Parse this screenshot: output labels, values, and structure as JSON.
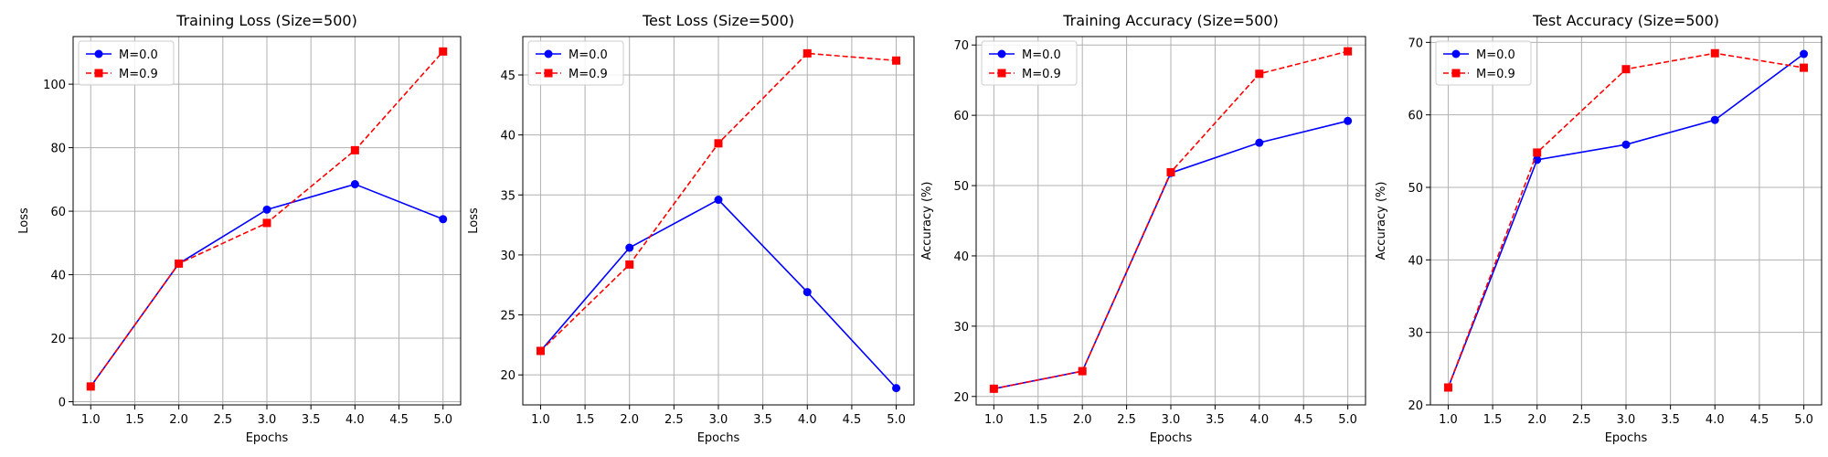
{
  "chart_data": [
    {
      "type": "line",
      "title": "Training Loss (Size=500)",
      "xlabel": "Epochs",
      "ylabel": "Loss",
      "x": [
        1,
        2,
        3,
        4,
        5
      ],
      "xlim": [
        0.8,
        5.2
      ],
      "ylim": [
        -1,
        115
      ],
      "xticks": [
        1.0,
        1.5,
        2.0,
        2.5,
        3.0,
        3.5,
        4.0,
        4.5,
        5.0
      ],
      "yticks": [
        0,
        20,
        40,
        60,
        80,
        100
      ],
      "xtick_labels": [
        "1.0",
        "1.5",
        "2.0",
        "2.5",
        "3.0",
        "3.5",
        "4.0",
        "4.5",
        "5.0"
      ],
      "ytick_labels": [
        "0",
        "20",
        "40",
        "60",
        "80",
        "100"
      ],
      "grid": true,
      "legend_position": "top-left",
      "series": [
        {
          "name": "M=0.0",
          "values": [
            4.8,
            43.5,
            60.5,
            68.5,
            57.5
          ],
          "color": "#0000ff",
          "linestyle": "solid",
          "marker": "circle"
        },
        {
          "name": "M=0.9",
          "values": [
            4.8,
            43.5,
            56.3,
            79.2,
            110.3
          ],
          "color": "#ff0000",
          "linestyle": "dashed",
          "marker": "square"
        }
      ]
    },
    {
      "type": "line",
      "title": "Test Loss (Size=500)",
      "xlabel": "Epochs",
      "ylabel": "Loss",
      "x": [
        1,
        2,
        3,
        4,
        5
      ],
      "xlim": [
        0.8,
        5.2
      ],
      "ylim": [
        17.5,
        48.2
      ],
      "xticks": [
        1.0,
        1.5,
        2.0,
        2.5,
        3.0,
        3.5,
        4.0,
        4.5,
        5.0
      ],
      "yticks": [
        20,
        25,
        30,
        35,
        40,
        45
      ],
      "xtick_labels": [
        "1.0",
        "1.5",
        "2.0",
        "2.5",
        "3.0",
        "3.5",
        "4.0",
        "4.5",
        "5.0"
      ],
      "ytick_labels": [
        "20",
        "25",
        "30",
        "35",
        "40",
        "45"
      ],
      "grid": true,
      "legend_position": "top-left",
      "series": [
        {
          "name": "M=0.0",
          "values": [
            22.0,
            30.6,
            34.6,
            26.9,
            18.9
          ],
          "color": "#0000ff",
          "linestyle": "solid",
          "marker": "circle"
        },
        {
          "name": "M=0.9",
          "values": [
            22.0,
            29.2,
            39.3,
            46.8,
            46.2
          ],
          "color": "#ff0000",
          "linestyle": "dashed",
          "marker": "square"
        }
      ]
    },
    {
      "type": "line",
      "title": "Training Accuracy (Size=500)",
      "xlabel": "Epochs",
      "ylabel": "Accuracy (%)",
      "x": [
        1,
        2,
        3,
        4,
        5
      ],
      "xlim": [
        0.8,
        5.2
      ],
      "ylim": [
        18.8,
        71.2
      ],
      "xticks": [
        1.0,
        1.5,
        2.0,
        2.5,
        3.0,
        3.5,
        4.0,
        4.5,
        5.0
      ],
      "yticks": [
        20,
        30,
        40,
        50,
        60,
        70
      ],
      "xtick_labels": [
        "1.0",
        "1.5",
        "2.0",
        "2.5",
        "3.0",
        "3.5",
        "4.0",
        "4.5",
        "5.0"
      ],
      "ytick_labels": [
        "20",
        "30",
        "40",
        "50",
        "60",
        "70"
      ],
      "grid": true,
      "legend_position": "top-left",
      "series": [
        {
          "name": "M=0.0",
          "values": [
            21.1,
            23.6,
            51.8,
            56.1,
            59.2
          ],
          "color": "#0000ff",
          "linestyle": "solid",
          "marker": "circle"
        },
        {
          "name": "M=0.9",
          "values": [
            21.1,
            23.6,
            51.9,
            65.9,
            69.1
          ],
          "color": "#ff0000",
          "linestyle": "dashed",
          "marker": "square"
        }
      ]
    },
    {
      "type": "line",
      "title": "Test Accuracy (Size=500)",
      "xlabel": "Epochs",
      "ylabel": "Accuracy (%)",
      "x": [
        1,
        2,
        3,
        4,
        5
      ],
      "xlim": [
        0.8,
        5.2
      ],
      "ylim": [
        20.0,
        70.8
      ],
      "xticks": [
        1.0,
        1.5,
        2.0,
        2.5,
        3.0,
        3.5,
        4.0,
        4.5,
        5.0
      ],
      "yticks": [
        20,
        30,
        40,
        50,
        60,
        70
      ],
      "xtick_labels": [
        "1.0",
        "1.5",
        "2.0",
        "2.5",
        "3.0",
        "3.5",
        "4.0",
        "4.5",
        "5.0"
      ],
      "ytick_labels": [
        "20",
        "30",
        "40",
        "50",
        "60",
        "70"
      ],
      "grid": true,
      "legend_position": "top-left",
      "series": [
        {
          "name": "M=0.0",
          "values": [
            22.4,
            53.8,
            55.9,
            59.3,
            68.4
          ],
          "color": "#0000ff",
          "linestyle": "solid",
          "marker": "circle"
        },
        {
          "name": "M=0.9",
          "values": [
            22.4,
            54.8,
            66.3,
            68.5,
            66.5
          ],
          "color": "#ff0000",
          "linestyle": "dashed",
          "marker": "square"
        }
      ]
    }
  ]
}
